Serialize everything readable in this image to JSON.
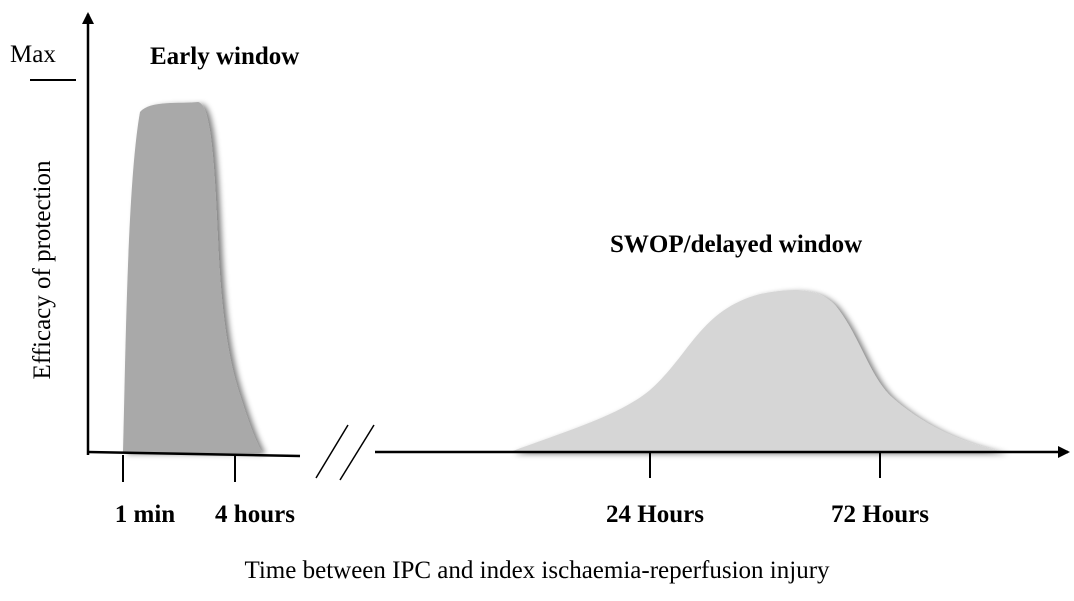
{
  "y_axis": {
    "label": "Efficacy of protection",
    "max_label": "Max"
  },
  "x_axis": {
    "label": "Time between IPC and index ischaemia-reperfusion injury",
    "ticks": [
      "1 min",
      "4 hours",
      "24 Hours",
      "72 Hours"
    ]
  },
  "windows": [
    "Early window",
    "SWOP/delayed window"
  ]
}
